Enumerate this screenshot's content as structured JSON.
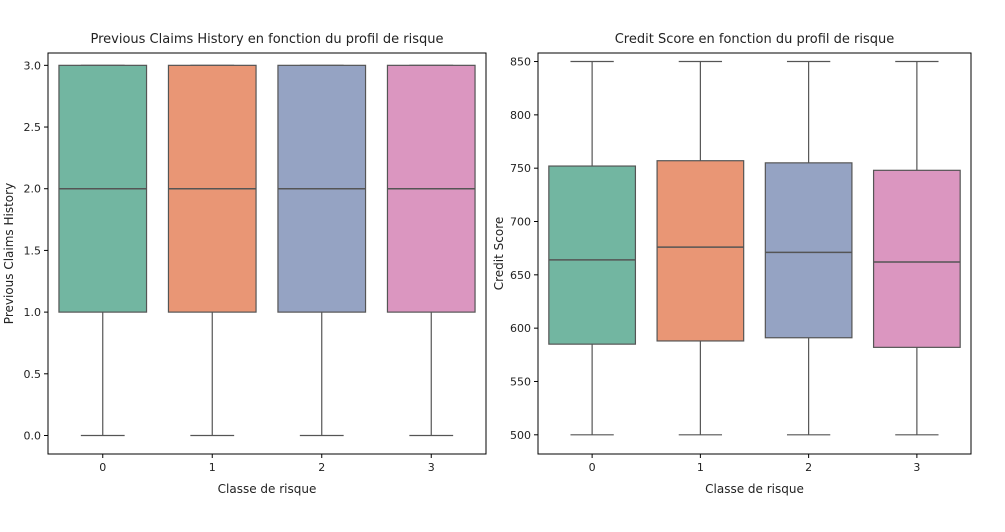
{
  "chart_data": [
    {
      "type": "box",
      "title": "Previous Claims History en fonction du profil de risque",
      "xlabel": "Classe de risque",
      "ylabel": "Previous Claims History",
      "categories": [
        "0",
        "1",
        "2",
        "3"
      ],
      "ylim": [
        -0.15,
        3.1
      ],
      "yticks": [
        "0.0",
        "0.5",
        "1.0",
        "1.5",
        "2.0",
        "2.5",
        "3.0"
      ],
      "grid": false,
      "boxes": [
        {
          "category": "0",
          "whisker_low": 0.0,
          "q1": 1.0,
          "median": 2.0,
          "q3": 3.0,
          "whisker_high": 3.0
        },
        {
          "category": "1",
          "whisker_low": 0.0,
          "q1": 1.0,
          "median": 2.0,
          "q3": 3.0,
          "whisker_high": 3.0
        },
        {
          "category": "2",
          "whisker_low": 0.0,
          "q1": 1.0,
          "median": 2.0,
          "q3": 3.0,
          "whisker_high": 3.0
        },
        {
          "category": "3",
          "whisker_low": 0.0,
          "q1": 1.0,
          "median": 2.0,
          "q3": 3.0,
          "whisker_high": 3.0
        }
      ]
    },
    {
      "type": "box",
      "title": "Credit Score en fonction du profil de risque",
      "xlabel": "Classe de risque",
      "ylabel": "Credit Score",
      "categories": [
        "0",
        "1",
        "2",
        "3"
      ],
      "ylim": [
        482,
        858
      ],
      "yticks": [
        "500",
        "550",
        "600",
        "650",
        "700",
        "750",
        "800",
        "850"
      ],
      "grid": false,
      "boxes": [
        {
          "category": "0",
          "whisker_low": 500,
          "q1": 585,
          "median": 664,
          "q3": 752,
          "whisker_high": 850
        },
        {
          "category": "1",
          "whisker_low": 500,
          "q1": 588,
          "median": 676,
          "q3": 757,
          "whisker_high": 850
        },
        {
          "category": "2",
          "whisker_low": 500,
          "q1": 591,
          "median": 671,
          "q3": 755,
          "whisker_high": 850
        },
        {
          "category": "3",
          "whisker_low": 500,
          "q1": 582,
          "median": 662,
          "q3": 748,
          "whisker_high": 850
        }
      ]
    }
  ],
  "colors": {
    "box_fills": [
      "#72b6a1",
      "#e99675",
      "#95a3c3",
      "#db96c0"
    ],
    "line": "#555555",
    "axis": "#000000"
  }
}
